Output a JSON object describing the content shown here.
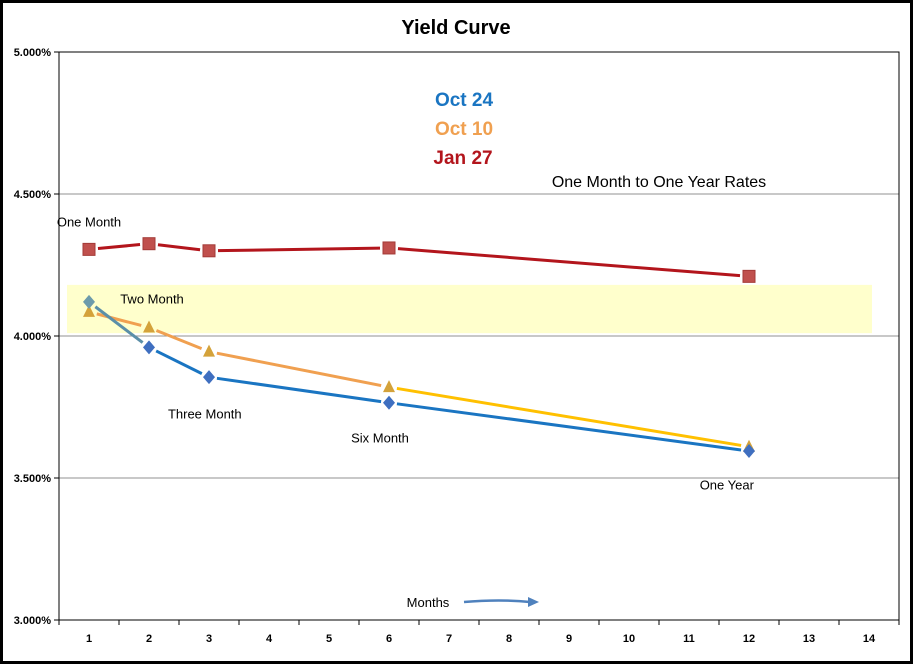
{
  "colors": {
    "oct24": "#1a75c2",
    "oct10_early": "#f0a050",
    "oct10_late": "#ffc000",
    "jan27": "#b3151c",
    "oct10_marker": "#d4a23a",
    "highlight": "#ffffcc",
    "arrow": "#4f81bd",
    "grid": "#909090"
  },
  "chart_data": {
    "type": "line",
    "title": "Yield Curve",
    "subtitle": "One Month to One Year Rates",
    "xlabel": "Months",
    "ylabel": "",
    "xlim": [
      0.5,
      14.5
    ],
    "ylim": [
      3.0,
      5.0
    ],
    "x_ticks": [
      "1",
      "2",
      "3",
      "4",
      "5",
      "6",
      "7",
      "8",
      "9",
      "10",
      "11",
      "12",
      "13",
      "14"
    ],
    "y_ticks": [
      "3.000%",
      "3.500%",
      "4.000%",
      "4.500%",
      "5.000%"
    ],
    "grid": "horizontal",
    "legend_position": "top-center",
    "series": [
      {
        "name": "Oct 24",
        "marker": "diamond",
        "x": [
          1,
          2,
          3,
          6,
          12
        ],
        "y": [
          4.12,
          3.96,
          3.855,
          3.765,
          3.595
        ]
      },
      {
        "name": "Oct 10",
        "marker": "triangle",
        "x": [
          1,
          2,
          3,
          6,
          12
        ],
        "y": [
          4.085,
          4.03,
          3.945,
          3.82,
          3.61
        ]
      },
      {
        "name": "Jan 27",
        "marker": "square",
        "x": [
          1,
          2,
          3,
          6,
          12
        ],
        "y": [
          4.305,
          4.325,
          4.3,
          4.31,
          4.21
        ]
      }
    ],
    "highlight_band": {
      "y_from": 4.01,
      "y_to": 4.18
    },
    "annotations": [
      {
        "text": "One Month",
        "x": 1,
        "y": 4.385,
        "anchor": "middle"
      },
      {
        "text": "Two Month",
        "x": 2.05,
        "y": 4.115,
        "anchor": "middle"
      },
      {
        "text": "Three Month",
        "x": 2.93,
        "y": 3.71,
        "anchor": "middle"
      },
      {
        "text": "Six Month",
        "x": 5.85,
        "y": 3.625,
        "anchor": "middle"
      },
      {
        "text": "One Year",
        "x": 11.63,
        "y": 3.46,
        "anchor": "middle"
      }
    ]
  }
}
